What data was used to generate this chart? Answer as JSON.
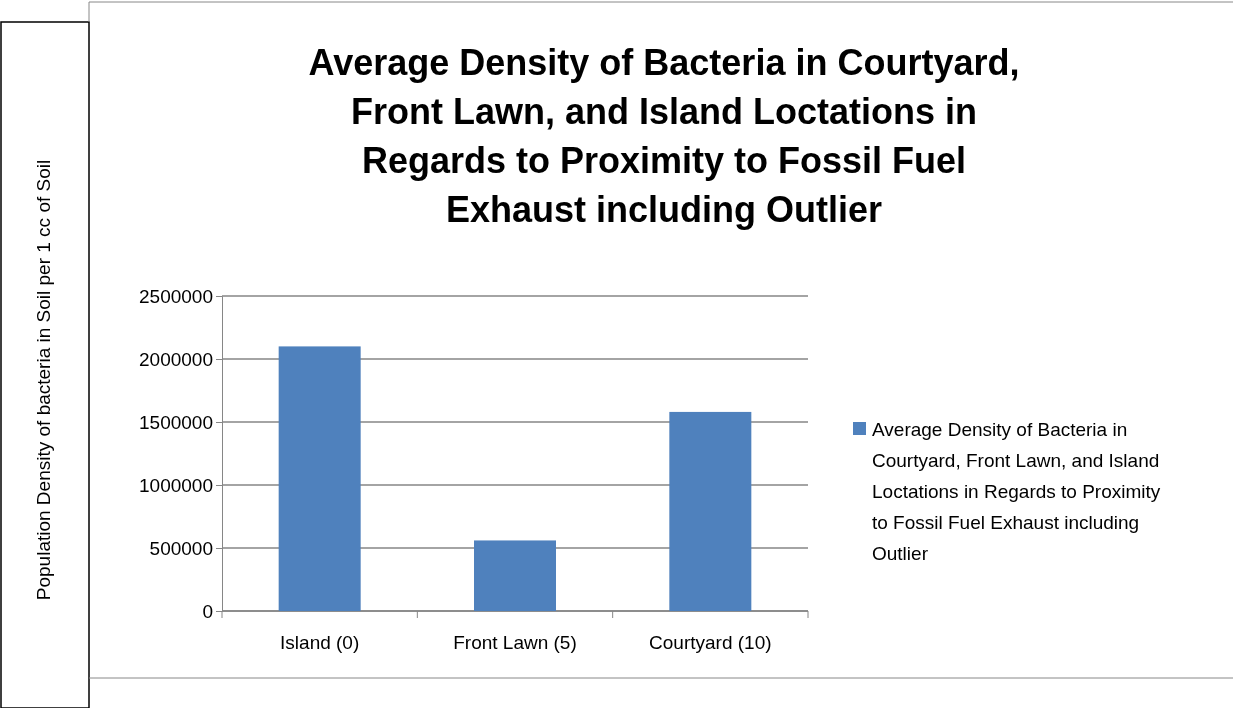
{
  "chart_data": {
    "type": "bar",
    "title": "Average Density of Bacteria in Courtyard, Front Lawn, and Island Loctations in Regards to Proximity to Fossil Fuel Exhaust including Outlier",
    "ylabel": "Population Density of bacteria in Soil per 1 cc of Soil",
    "categories": [
      "Island (0)",
      "Front Lawn (5)",
      "Courtyard (10)"
    ],
    "series": [
      {
        "name": "Average Density of Bacteria in Courtyard, Front Lawn, and Island Loctations in Regards to Proximity to Fossil Fuel Exhaust including Outlier",
        "color": "#4f81bd",
        "values": [
          2100000,
          560000,
          1580000
        ]
      }
    ],
    "ylim": [
      0,
      2500000
    ],
    "yticks": [
      0,
      500000,
      1000000,
      1500000,
      2000000,
      2500000
    ],
    "grid": "y",
    "legend": "right"
  }
}
